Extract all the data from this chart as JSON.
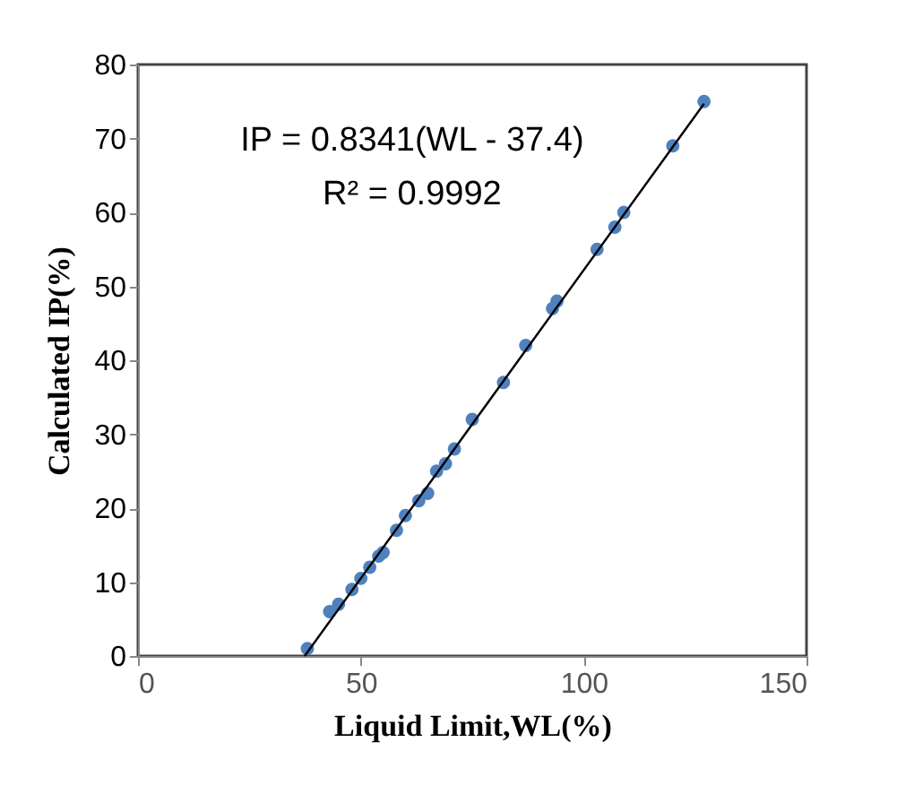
{
  "chart_data": {
    "type": "scatter",
    "xlabel": "Liquid Limit,WL(%)",
    "ylabel": "Calculated IP(%)",
    "xlim": [
      0,
      150
    ],
    "ylim": [
      0,
      80
    ],
    "xticks": [
      0,
      50,
      100,
      150
    ],
    "yticks": [
      0,
      10,
      20,
      30,
      40,
      50,
      60,
      70,
      80
    ],
    "grid": false,
    "annotations": [
      "IP = 0.8341(WL - 37.4)",
      "R² = 0.9992"
    ],
    "series": [
      {
        "marker": "circle",
        "color": "#4f81bd",
        "x": [
          38,
          43,
          45,
          48,
          50,
          52,
          54,
          55,
          58,
          60,
          63,
          65,
          67,
          69,
          71,
          75,
          82,
          87,
          93,
          94,
          103,
          107,
          109,
          120,
          127
        ],
        "values": [
          1,
          6,
          7,
          9,
          10.5,
          12,
          13.5,
          14,
          17,
          19,
          21,
          22,
          25,
          26,
          28,
          32,
          37,
          42,
          47,
          48,
          55,
          58,
          60,
          69,
          75
        ]
      },
      {
        "type": "line",
        "color": "#000000",
        "x": [
          37.4,
          127
        ],
        "values": [
          0,
          74.7
        ]
      }
    ]
  }
}
